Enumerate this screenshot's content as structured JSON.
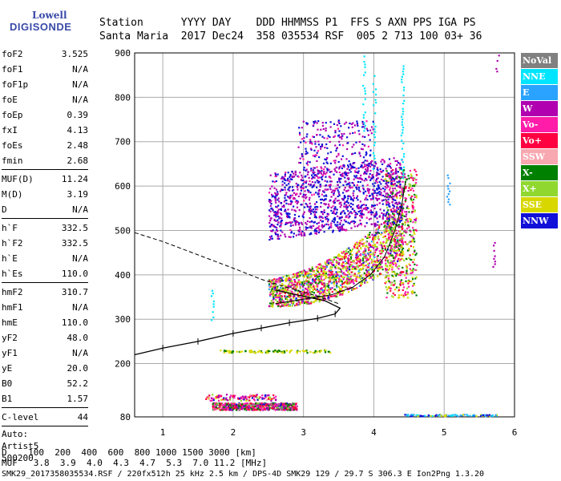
{
  "logo": {
    "line1": "Lowell",
    "line2": "DIGISONDE"
  },
  "header": {
    "line1": "Station      YYYY DAY    DDD HHMMSS P1  FFS S AXN PPS IGA PS",
    "line2": "Santa Maria  2017 Dec24  358 035534 RSF  005 2 713 100 03+ 36"
  },
  "params": [
    {
      "k": "foF2",
      "v": "3.525"
    },
    {
      "k": "foF1",
      "v": "N/A"
    },
    {
      "k": "foF1p",
      "v": "N/A"
    },
    {
      "k": "foE",
      "v": "N/A"
    },
    {
      "k": "foEp",
      "v": "0.39"
    },
    {
      "k": "fxI",
      "v": "4.13"
    },
    {
      "k": "foEs",
      "v": "2.48"
    },
    {
      "k": "fmin",
      "v": "2.68"
    },
    {
      "sep": true
    },
    {
      "k": "MUF(D)",
      "v": "11.24"
    },
    {
      "k": "M(D)",
      "v": "3.19"
    },
    {
      "k": "D",
      "v": "N/A"
    },
    {
      "sep": true
    },
    {
      "k": "h`F",
      "v": "332.5"
    },
    {
      "k": "h`F2",
      "v": "332.5"
    },
    {
      "k": "h`E",
      "v": "N/A"
    },
    {
      "k": "h`Es",
      "v": "110.0"
    },
    {
      "sep": true
    },
    {
      "k": "hmF2",
      "v": "310.7"
    },
    {
      "k": "hmF1",
      "v": "N/A"
    },
    {
      "k": "hmE",
      "v": "110.0"
    },
    {
      "k": "yF2",
      "v": "48.0"
    },
    {
      "k": "yF1",
      "v": "N/A"
    },
    {
      "k": "yE",
      "v": "20.0"
    },
    {
      "k": "B0",
      "v": "52.2"
    },
    {
      "k": "B1",
      "v": "1.57"
    },
    {
      "sep": true
    },
    {
      "k": "C-level",
      "v": "44"
    },
    {
      "sep": true
    },
    {
      "text": "Auto:"
    },
    {
      "text": "Artist5"
    },
    {
      "text": "500200"
    }
  ],
  "legend": [
    {
      "label": "NoVal",
      "color": "#808080"
    },
    {
      "label": "NNE",
      "color": "#00e5ff"
    },
    {
      "label": "E",
      "color": "#2aa2ff"
    },
    {
      "label": "W",
      "color": "#b000b0"
    },
    {
      "label": "Vo-",
      "color": "#ff1ca8"
    },
    {
      "label": "Vo+",
      "color": "#ff0040"
    },
    {
      "label": "SSW",
      "color": "#f8a8b0"
    },
    {
      "label": "X-",
      "color": "#008000"
    },
    {
      "label": "X+",
      "color": "#90d830"
    },
    {
      "label": "SSE",
      "color": "#d8d800"
    },
    {
      "label": "NNW",
      "color": "#1010d8"
    }
  ],
  "chart_data": {
    "type": "scatter",
    "xlim": [
      0.6,
      6.0
    ],
    "ylim": [
      80,
      900
    ],
    "x_ticks": [
      "1",
      "2",
      "3",
      "4",
      "5",
      "6"
    ],
    "y_ticks": [
      "80",
      "200",
      "300",
      "400",
      "500",
      "600",
      "700",
      "800",
      "900"
    ],
    "grid": true
  },
  "footer": {
    "line1": "D    100  200  400  600  800 1000 1500 3000 [km]",
    "line2": "MUF   3.8  3.9  4.0  4.3  4.7  5.3  7.0 11.2 [MHz]",
    "line3": "SMK29_2017358035534.RSF / 220fx512h 25 kHz 2.5 km / DPS-4D SMK29 129 / 29.7 S 306.3 E Ion2Png 1.3.20"
  }
}
